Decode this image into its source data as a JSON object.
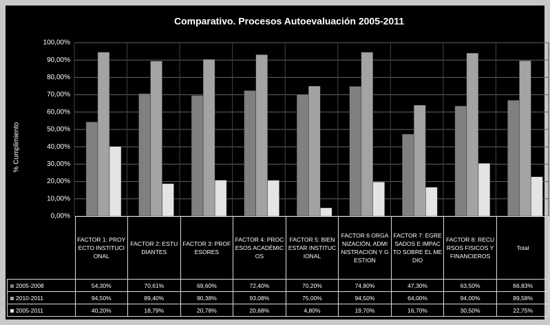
{
  "chart_data": {
    "type": "bar",
    "title": "Comparativo. Procesos Autoevaluación 2005-2011",
    "y_axis_label": "% Cumplimiento",
    "categories": [
      "FACTOR 1: PROYECTO INSTITUCIONAL",
      "FACTOR 2: ESTUDIANTES",
      "FACTOR 3: PROFESORES",
      "FACTOR 4: PROCESOS ACADÉMICOS",
      "FACTOR 5: BIENESTAR INSTITUCIONAL",
      "FACTOR 6 ORGANIZACIÓN, ADMINISTRACION Y GESTION",
      "FACTOR 7: EGRESADOS E IMPACTO SOBRE EL MEDIO",
      "FACTOR 8: RECURSOS FISICOS Y FINANCIEROS",
      "Total"
    ],
    "series": [
      {
        "name": "2005-2008",
        "color": "#808080",
        "values": [
          54.3,
          70.61,
          69.6,
          72.4,
          70.2,
          74.8,
          47.3,
          63.5,
          66.83
        ],
        "value_labels": [
          "54,30%",
          "70,61%",
          "69,60%",
          "72,40%",
          "70,20%",
          "74,80%",
          "47,30%",
          "63,50%",
          "66,83%"
        ]
      },
      {
        "name": "2010-2011",
        "color": "#a3a3a3",
        "values": [
          94.5,
          89.4,
          90.38,
          93.08,
          75.0,
          94.5,
          64.0,
          94.0,
          89.58
        ],
        "value_labels": [
          "94,50%",
          "89,40%",
          "90,38%",
          "93,08%",
          "75,00%",
          "94,50%",
          "64,00%",
          "94,00%",
          "89,58%"
        ]
      },
      {
        "name": "2005-2011",
        "color": "#e4e4e4",
        "values": [
          40.2,
          18.79,
          20.78,
          20.68,
          4.8,
          19.7,
          16.7,
          30.5,
          22.75
        ],
        "value_labels": [
          "40,20%",
          "18,79%",
          "20,78%",
          "20,68%",
          "4,80%",
          "19,70%",
          "16,70%",
          "30,50%",
          "22,75%"
        ]
      }
    ],
    "ylim": [
      0,
      100
    ],
    "yticks": [
      {
        "value": 0,
        "label": "0,00%"
      },
      {
        "value": 10,
        "label": "10,00%"
      },
      {
        "value": 20,
        "label": "20,00%"
      },
      {
        "value": 30,
        "label": "30,00%"
      },
      {
        "value": 40,
        "label": "40,00%"
      },
      {
        "value": 50,
        "label": "50,00%"
      },
      {
        "value": 60,
        "label": "60,00%"
      },
      {
        "value": 70,
        "label": "70,00%"
      },
      {
        "value": 80,
        "label": "80,00%"
      },
      {
        "value": 90,
        "label": "90,00%"
      },
      {
        "value": 100,
        "label": "100,00%"
      }
    ],
    "grid": true
  }
}
